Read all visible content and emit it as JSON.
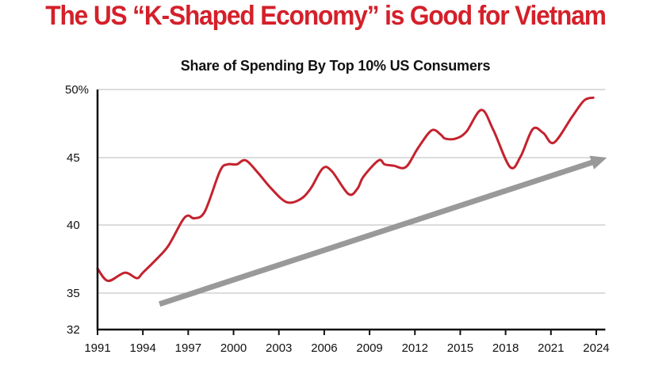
{
  "header": {
    "title": "The US “K-Shaped Economy” is Good for Vietnam"
  },
  "colors": {
    "title": "#d4202a",
    "series": "#c4222e",
    "trend_arrow": "#999999",
    "gridline": "#c8c8c8",
    "axis": "#111111"
  },
  "chart_data": {
    "type": "line",
    "title": "Share of Spending By Top 10% US Consumers",
    "xlabel": "",
    "ylabel": "",
    "xlim": [
      1991,
      2024.6
    ],
    "ylim": [
      32,
      50
    ],
    "grid": true,
    "y_ticks": [
      {
        "value": 50,
        "label": "50%"
      },
      {
        "value": 45,
        "label": "45"
      },
      {
        "value": 40,
        "label": "40"
      },
      {
        "value": 35,
        "label": "35"
      },
      {
        "value": 32,
        "label": "32"
      }
    ],
    "x_ticks": [
      {
        "value": 1991,
        "label": "1991"
      },
      {
        "value": 1994,
        "label": "1994"
      },
      {
        "value": 1997,
        "label": "1997"
      },
      {
        "value": 2000,
        "label": "2000"
      },
      {
        "value": 2003,
        "label": "2003"
      },
      {
        "value": 2006,
        "label": "2006"
      },
      {
        "value": 2009,
        "label": "2009"
      },
      {
        "value": 2012,
        "label": "2012"
      },
      {
        "value": 2015,
        "label": "2015"
      },
      {
        "value": 2018,
        "label": "2018"
      },
      {
        "value": 2021,
        "label": "2021"
      },
      {
        "value": 2024,
        "label": "2024"
      }
    ],
    "series": [
      {
        "name": "Share of spending by top 10% US consumers",
        "x": [
          1991.0,
          1991.7,
          1992.8,
          1993.6,
          1994.0,
          1995.0,
          1995.7,
          1996.6,
          1997.0,
          1997.4,
          1998.1,
          1999.1,
          1999.6,
          2000.2,
          2000.8,
          2001.6,
          2002.5,
          2003.5,
          2004.4,
          2005.1,
          2005.9,
          2006.5,
          2007.6,
          2008.2,
          2008.6,
          2009.6,
          2010.0,
          2010.6,
          2011.4,
          2012.2,
          2013.1,
          2013.7,
          2014.0,
          2014.7,
          2015.4,
          2016.4,
          2017.2,
          2018.3,
          2019.0,
          2019.8,
          2020.5,
          2021.2,
          2022.4,
          2023.2,
          2023.8
        ],
        "values": [
          36.8,
          35.9,
          36.5,
          36.1,
          36.5,
          37.6,
          38.5,
          40.3,
          40.7,
          40.5,
          41.0,
          44.0,
          44.5,
          44.5,
          44.8,
          43.9,
          42.7,
          41.7,
          41.9,
          42.7,
          44.2,
          44.0,
          42.3,
          42.7,
          43.6,
          44.8,
          44.5,
          44.4,
          44.3,
          45.7,
          47.0,
          46.7,
          46.4,
          46.4,
          46.9,
          48.5,
          47.0,
          44.3,
          45.1,
          47.1,
          46.8,
          46.1,
          48.0,
          49.2,
          49.4
        ]
      }
    ],
    "annotations": [
      {
        "type": "arrow",
        "description": "gray upward trend arrow",
        "from": [
          1995.1,
          34.1
        ],
        "to": [
          2024.7,
          45.0
        ]
      }
    ]
  }
}
